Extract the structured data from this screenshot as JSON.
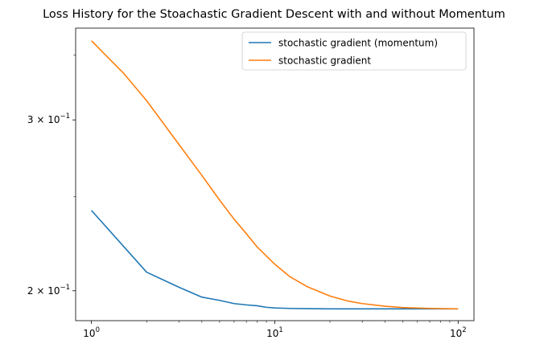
{
  "chart_data": {
    "type": "line",
    "title": "Loss History for the Stoachastic Gradient Descent with and without Momentum",
    "xlabel": "",
    "ylabel": "",
    "xscale": "log",
    "yscale": "log",
    "xlim": [
      0.82,
      122
    ],
    "ylim": [
      0.1863,
      0.373
    ],
    "grid": false,
    "legend_position": "top-right",
    "x_ticks": [
      {
        "value": 1,
        "base": "10",
        "exp": "0"
      },
      {
        "value": 10,
        "base": "10",
        "exp": "1"
      },
      {
        "value": 100,
        "base": "10",
        "exp": "2"
      }
    ],
    "y_ticks": [
      {
        "value": 0.3,
        "mant": "3",
        "times": "×",
        "base": "10",
        "exp": "−1"
      },
      {
        "value": 0.2,
        "mant": "2",
        "times": "×",
        "base": "10",
        "exp": "−1"
      }
    ],
    "x_minor_ticks": [
      2,
      3,
      4,
      5,
      6,
      7,
      8,
      9,
      20,
      30,
      40,
      50,
      60,
      70,
      80,
      90
    ],
    "y_minor_ticks": [
      0.25,
      0.35
    ],
    "series": [
      {
        "name": "stochastic gradient (momentum)",
        "color": "#1f77b4",
        "x": [
          1,
          2,
          3,
          4,
          5,
          6,
          7,
          8,
          9,
          10,
          12,
          15,
          20,
          30,
          40,
          50,
          70,
          100
        ],
        "values": [
          0.242,
          0.209,
          0.2017,
          0.197,
          0.1955,
          0.194,
          0.1934,
          0.193,
          0.1923,
          0.192,
          0.1918,
          0.1917,
          0.1916,
          0.1916,
          0.1916,
          0.1916,
          0.1916,
          0.1916
        ]
      },
      {
        "name": "stochastic gradient",
        "color": "#ff7f0e",
        "x": [
          1,
          1.5,
          2,
          3,
          4,
          5,
          6,
          7,
          8,
          10,
          12,
          15,
          20,
          25,
          30,
          40,
          50,
          70,
          100
        ],
        "values": [
          0.362,
          0.335,
          0.314,
          0.283,
          0.263,
          0.248,
          0.237,
          0.229,
          0.222,
          0.213,
          0.207,
          0.202,
          0.1975,
          0.1952,
          0.194,
          0.1928,
          0.1922,
          0.1918,
          0.1916
        ]
      }
    ]
  }
}
